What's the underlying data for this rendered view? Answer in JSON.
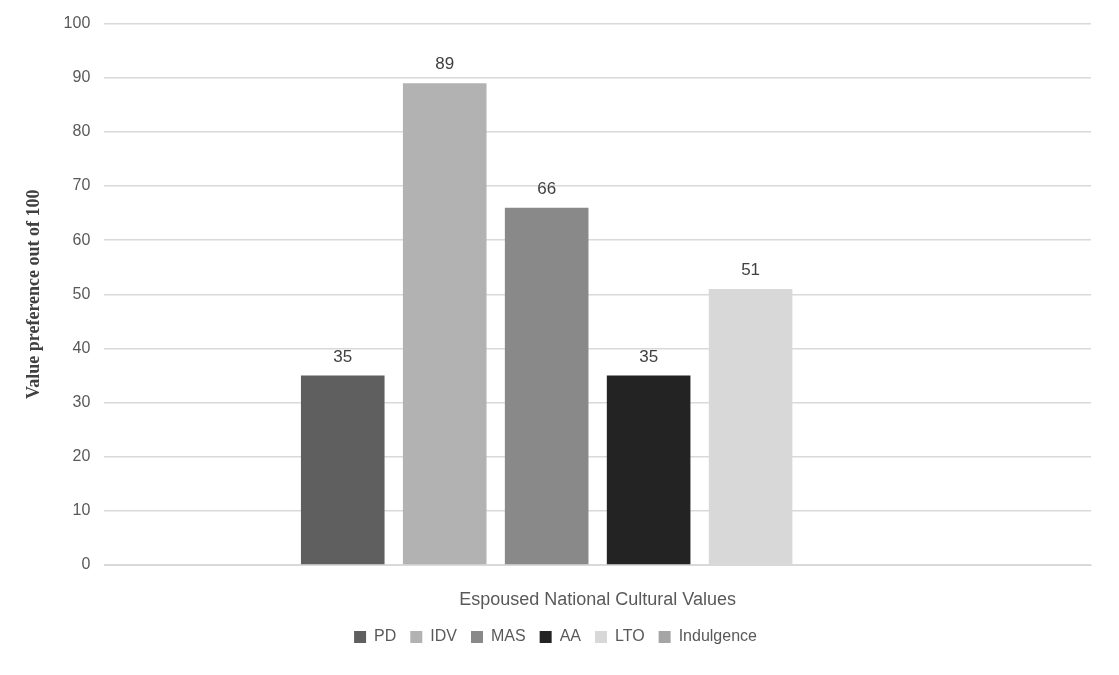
{
  "chart_data": {
    "type": "bar",
    "categories": [
      null
    ],
    "xlabel": "Espoused National Cultural Values",
    "ylabel": "Value preference out of 100",
    "ylim": [
      0,
      100
    ],
    "yticks": [
      0,
      10,
      20,
      30,
      40,
      50,
      60,
      70,
      80,
      90,
      100
    ],
    "grid": "y",
    "legend": "bottom",
    "data_labels": true,
    "series": [
      {
        "name": "PD",
        "color": "#5f5f5f",
        "values": [
          35
        ]
      },
      {
        "name": "IDV",
        "color": "#b2b2b2",
        "values": [
          89
        ]
      },
      {
        "name": "MAS",
        "color": "#898989",
        "values": [
          66
        ]
      },
      {
        "name": "AA",
        "color": "#232323",
        "values": [
          35
        ]
      },
      {
        "name": "LTO",
        "color": "#d8d8d8",
        "values": [
          51
        ]
      },
      {
        "name": "Indulgence",
        "color": "#a5a5a5",
        "values": [
          null
        ]
      }
    ]
  }
}
